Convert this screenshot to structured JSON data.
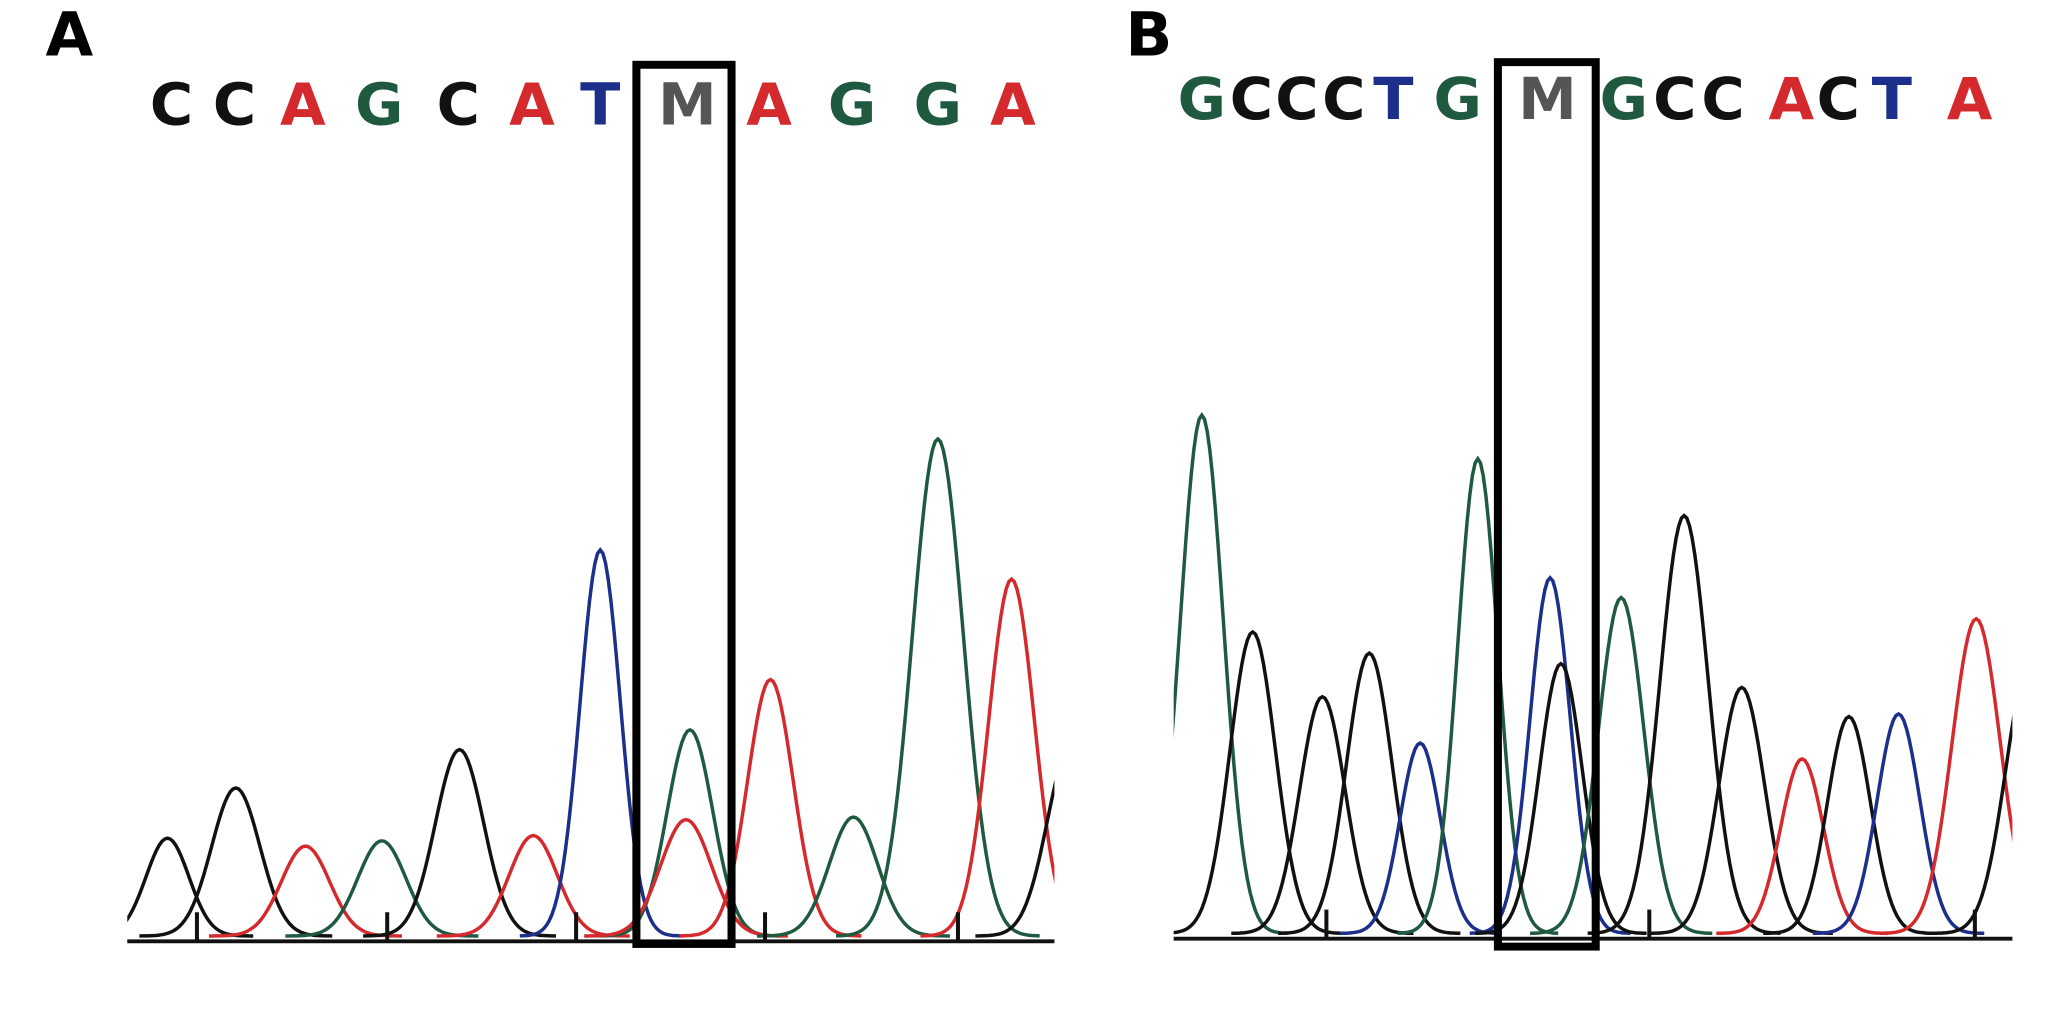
{
  "panels": [
    {
      "label": "A",
      "bases": [
        "C",
        "C",
        "A",
        "G",
        "C",
        "A",
        "T",
        "M",
        "A",
        "G",
        "G",
        "A"
      ]
    },
    {
      "label": "B",
      "bases": [
        "G",
        "C",
        "C",
        "C",
        "T",
        "G",
        "M",
        "G",
        "C",
        "C",
        "A",
        "C",
        "T",
        "A"
      ]
    }
  ],
  "base_colors": {
    "A": "#d42a2e",
    "C": "#111111",
    "G": "#1f5a40",
    "T": "#1c2f8a",
    "M": "#555555"
  }
}
